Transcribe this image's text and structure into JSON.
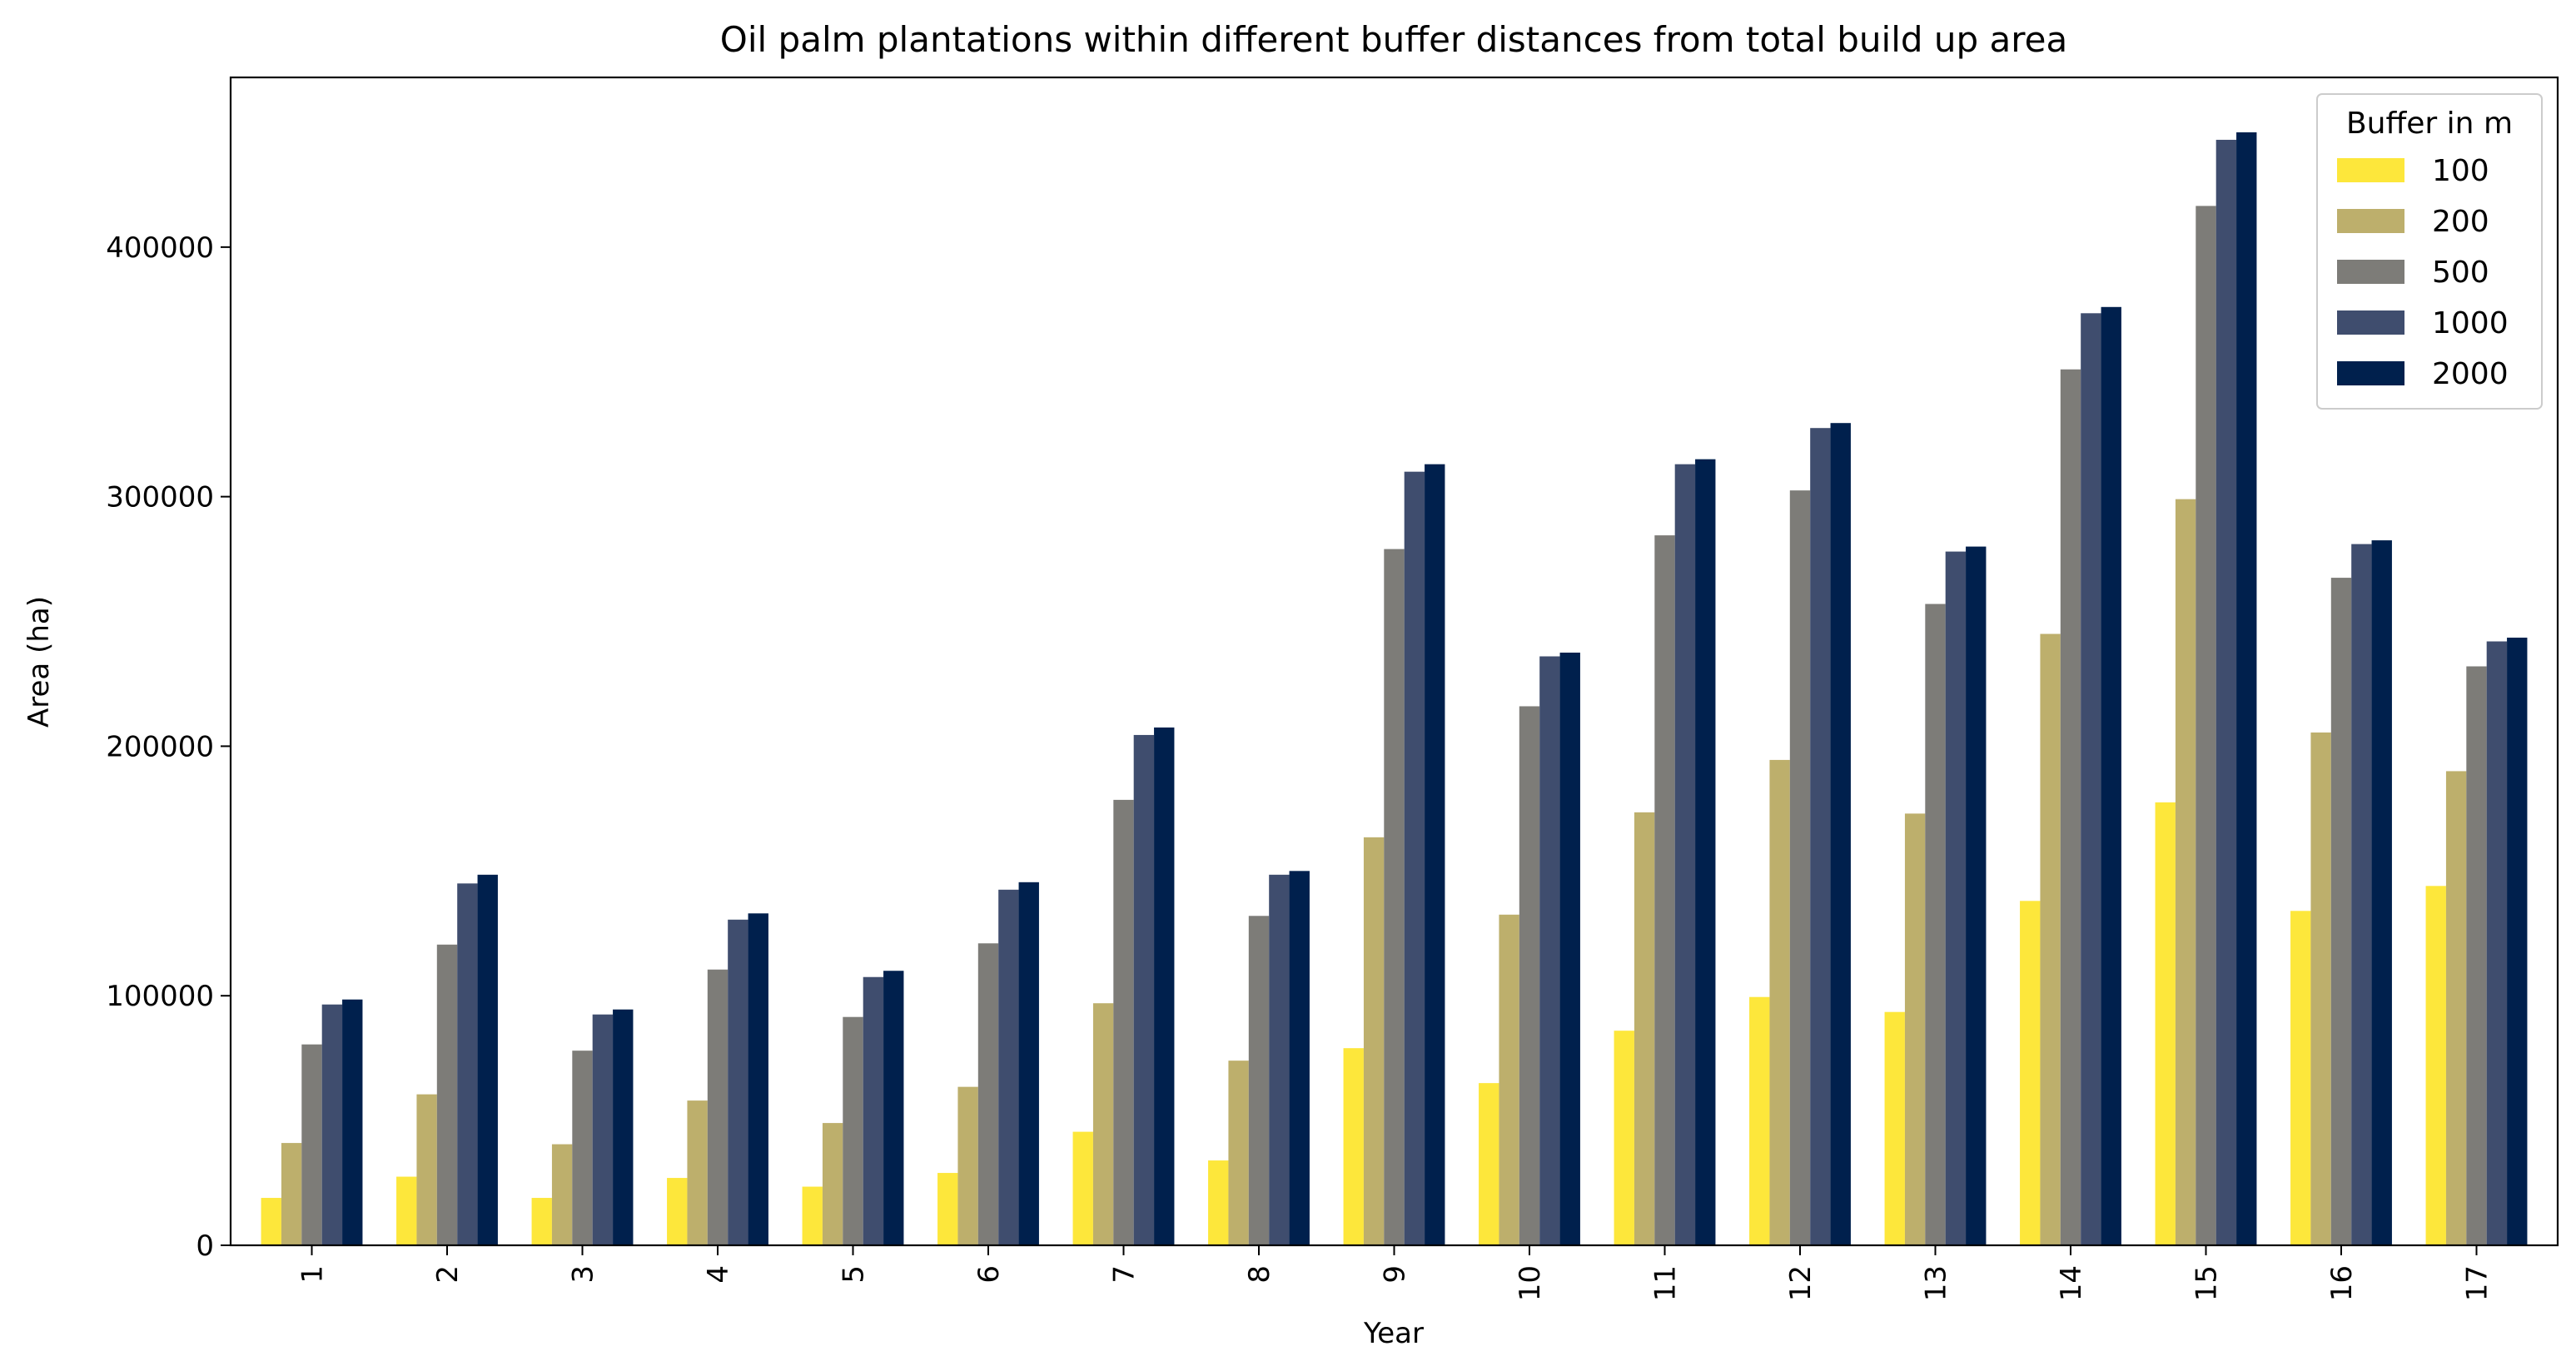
{
  "chart_data": {
    "type": "bar",
    "title": "Oil palm plantations within different buffer distances from total build up area",
    "xlabel": "Year",
    "ylabel": "Area (ha)",
    "categories": [
      "1",
      "2",
      "3",
      "4",
      "5",
      "6",
      "7",
      "8",
      "9",
      "10",
      "11",
      "12",
      "13",
      "14",
      "15",
      "16",
      "17"
    ],
    "ylim": [
      0,
      468000
    ],
    "yticks": [
      0,
      100000,
      200000,
      300000,
      400000
    ],
    "ytick_labels": [
      "0",
      "100000",
      "200000",
      "300000",
      "400000"
    ],
    "grid": false,
    "legend": {
      "title": "Buffer in m",
      "placement": "top-right"
    },
    "series": [
      {
        "name": "100",
        "color": "#fde73b",
        "values": [
          19000,
          27500,
          19000,
          27000,
          23500,
          29000,
          45500,
          34000,
          79000,
          65000,
          86000,
          99500,
          93500,
          138000,
          177500,
          134000,
          144000
        ]
      },
      {
        "name": "200",
        "color": "#bdaf6c",
        "values": [
          41000,
          60500,
          40500,
          58000,
          49000,
          63500,
          97000,
          74000,
          163500,
          132500,
          173500,
          194500,
          173000,
          245000,
          299000,
          205500,
          190000
        ]
      },
      {
        "name": "500",
        "color": "#7d7c78",
        "values": [
          80500,
          120500,
          78000,
          110500,
          91500,
          121000,
          178500,
          132000,
          279000,
          216000,
          284500,
          302500,
          257000,
          351000,
          416500,
          267500,
          232000
        ]
      },
      {
        "name": "1000",
        "color": "#3f4d6e",
        "values": [
          96500,
          145000,
          92500,
          130500,
          107500,
          142500,
          204500,
          148500,
          310000,
          236000,
          313000,
          327500,
          278000,
          373500,
          443000,
          281000,
          242000
        ]
      },
      {
        "name": "2000",
        "color": "#00204d",
        "values": [
          98500,
          148500,
          94500,
          133000,
          110000,
          145500,
          207500,
          150000,
          313000,
          237500,
          315000,
          329500,
          280000,
          376000,
          446000,
          282500,
          243500
        ]
      }
    ]
  }
}
